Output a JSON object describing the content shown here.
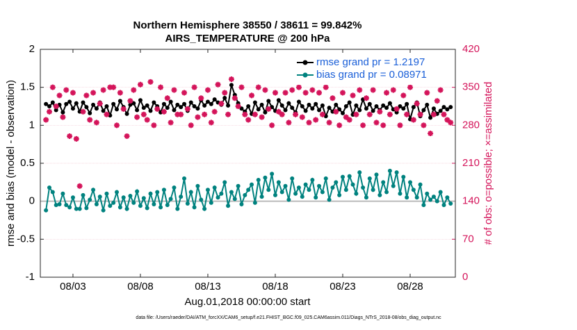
{
  "chart_data": {
    "type": "line",
    "title": "Northern Hemisphere 38550 / 38611 = 99.842%",
    "subtitle": "AIRS_TEMPERATURE @ 200 hPa",
    "xlabel": "Aug.01,2018 00:00:00 start",
    "ylabel": "rmse and bias (model - observation)",
    "y2label": "# of obs: o=possible; ×=assimilated",
    "footnote": "data file: /Users/raeder/DAI/ATM_forcXX/CAM6_setup/f.e21.FHIST_BGC.f09_025.CAM6assim.011/Diags_NTrS_2018-08/obs_diag_output.nc",
    "xlim": [
      -0.42,
      30.35
    ],
    "xticks": [
      {
        "value": 2,
        "label": "08/03"
      },
      {
        "value": 7,
        "label": "08/08"
      },
      {
        "value": 12,
        "label": "08/13"
      },
      {
        "value": 17,
        "label": "08/18"
      },
      {
        "value": 22,
        "label": "08/23"
      },
      {
        "value": 27,
        "label": "08/28"
      }
    ],
    "ylim": [
      -1,
      2
    ],
    "yticks": [
      -1,
      -0.5,
      0,
      0.5,
      1,
      1.5,
      2
    ],
    "y2lim": [
      0,
      420
    ],
    "y2ticks": [
      0,
      70,
      140,
      210,
      280,
      350,
      420
    ],
    "hline": 0,
    "grid": true,
    "legend": "upper right",
    "legend_text_color": "#1a5fd8",
    "y2_color": "#d4145a",
    "x": [
      0,
      0.25,
      0.5,
      0.75,
      1,
      1.25,
      1.5,
      1.75,
      2,
      2.25,
      2.5,
      2.75,
      3,
      3.25,
      3.5,
      3.75,
      4,
      4.25,
      4.5,
      4.75,
      5,
      5.25,
      5.5,
      5.75,
      6,
      6.25,
      6.5,
      6.75,
      7,
      7.25,
      7.5,
      7.75,
      8,
      8.25,
      8.5,
      8.75,
      9,
      9.25,
      9.5,
      9.75,
      10,
      10.25,
      10.5,
      10.75,
      11,
      11.25,
      11.5,
      11.75,
      12,
      12.25,
      12.5,
      12.75,
      13,
      13.25,
      13.5,
      13.75,
      14,
      14.25,
      14.5,
      14.75,
      15,
      15.25,
      15.5,
      15.75,
      16,
      16.25,
      16.5,
      16.75,
      17,
      17.25,
      17.5,
      17.75,
      18,
      18.25,
      18.5,
      18.75,
      19,
      19.25,
      19.5,
      19.75,
      20,
      20.25,
      20.5,
      20.75,
      21,
      21.25,
      21.5,
      21.75,
      22,
      22.25,
      22.5,
      22.75,
      23,
      23.25,
      23.5,
      23.75,
      24,
      24.25,
      24.5,
      24.75,
      25,
      25.25,
      25.5,
      25.75,
      26,
      26.25,
      26.5,
      26.75,
      27,
      27.25,
      27.5,
      27.75,
      28,
      28.25,
      28.5,
      28.75,
      29,
      29.25,
      29.5,
      29.75,
      30
    ],
    "series": [
      {
        "name": "rmse grand pr = 1.2197",
        "color": "#000000",
        "marker": "circle",
        "values": [
          1.28,
          1.25,
          1.3,
          1.2,
          1.27,
          1.17,
          1.28,
          1.31,
          1.22,
          1.29,
          1.18,
          1.3,
          1.24,
          1.16,
          1.27,
          1.22,
          1.3,
          1.19,
          1.25,
          1.13,
          1.28,
          1.21,
          1.32,
          1.24,
          1.15,
          1.27,
          1.29,
          1.2,
          1.33,
          1.23,
          1.26,
          1.19,
          1.3,
          1.25,
          1.17,
          1.28,
          1.23,
          1.31,
          1.2,
          1.27,
          1.24,
          1.28,
          1.19,
          1.3,
          1.25,
          1.22,
          1.33,
          1.26,
          1.31,
          1.28,
          1.34,
          1.3,
          1.27,
          1.36,
          1.26,
          1.53,
          1.4,
          1.29,
          1.22,
          1.18,
          1.25,
          1.15,
          1.3,
          1.21,
          1.27,
          1.17,
          1.32,
          1.24,
          1.19,
          1.33,
          1.26,
          1.2,
          1.29,
          1.23,
          1.17,
          1.31,
          1.25,
          1.19,
          1.27,
          1.22,
          1.28,
          1.2,
          1.26,
          1.12,
          1.23,
          1.18,
          1.27,
          1.21,
          1.16,
          1.25,
          1.3,
          1.14,
          1.26,
          1.2,
          1.34,
          1.22,
          1.28,
          1.19,
          1.25,
          1.2,
          1.26,
          1.23,
          1.29,
          1.21,
          1.17,
          1.25,
          1.22,
          1.28,
          1.08,
          1.24,
          1.3,
          1.12,
          1.2,
          1.27,
          1.1,
          1.22,
          1.15,
          1.19,
          1.24,
          1.21,
          1.24
        ]
      },
      {
        "name": "bias grand pr = 0.08971",
        "color": "#00827f",
        "marker": "circle",
        "values": [
          -0.12,
          0.18,
          0.12,
          -0.05,
          -0.04,
          0.1,
          -0.05,
          -0.08,
          0.05,
          -0.1,
          -0.1,
          0.08,
          -0.09,
          0.02,
          0.15,
          -0.04,
          0.06,
          -0.12,
          0.1,
          -0.06,
          -0.02,
          0.12,
          -0.08,
          0.05,
          -0.1,
          0.07,
          -0.02,
          0.13,
          -0.06,
          0.04,
          -0.09,
          0.1,
          -0.04,
          0.12,
          -0.08,
          0.15,
          -0.05,
          0.03,
          0.18,
          -0.1,
          0.06,
          0.3,
          -0.03,
          0.12,
          -0.08,
          0.2,
          0.02,
          -0.1,
          0.15,
          -0.02,
          0.18,
          0.05,
          0.1,
          0.25,
          -0.06,
          0.12,
          0.03,
          0.2,
          -0.04,
          0.08,
          0.15,
          0.22,
          -0.02,
          0.28,
          0.06,
          0.31,
          0.15,
          0.36,
          0.08,
          0.25,
          0.12,
          0.2,
          0.02,
          0.3,
          0.1,
          0.18,
          0.06,
          0.22,
          0.15,
          0.28,
          0.05,
          0.2,
          0.12,
          0.3,
          0.02,
          0.18,
          0.25,
          0.08,
          0.32,
          0.15,
          0.33,
          0.22,
          0.1,
          0.38,
          0.18,
          0.05,
          0.3,
          0.15,
          0.35,
          0.08,
          0.25,
          0.12,
          0.4,
          0.2,
          0.38,
          0.1,
          0.32,
          0.05,
          0.25,
          0.15,
          0.05,
          0.22,
          -0.05,
          0.1,
          0.02,
          0.06,
          0.0,
          0.12,
          -0.05,
          0.05,
          -0.03
        ]
      },
      {
        "color": "#d4145a",
        "marker": "star",
        "axis": "y2",
        "line": false,
        "values": [
          290,
          305,
          350,
          315,
          335,
          295,
          345,
          260,
          340,
          255,
          168,
          305,
          335,
          290,
          340,
          285,
          320,
          345,
          300,
          350,
          350,
          280,
          340,
          310,
          260,
          325,
          345,
          295,
          355,
          300,
          290,
          360,
          280,
          310,
          350,
          305,
          330,
          285,
          345,
          300,
          300,
          340,
          310,
          280,
          350,
          295,
          330,
          300,
          345,
          285,
          305,
          355,
          320,
          340,
          300,
          365,
          330,
          315,
          350,
          300,
          290,
          335,
          300,
          350,
          295,
          345,
          310,
          280,
          340,
          305,
          300,
          340,
          285,
          345,
          300,
          350,
          295,
          340,
          285,
          345,
          290,
          340,
          300,
          350,
          285,
          330,
          305,
          280,
          340,
          295,
          290,
          335,
          300,
          345,
          280,
          330,
          300,
          345,
          285,
          305,
          280,
          340,
          300,
          345,
          310,
          280,
          335,
          300,
          350,
          290,
          320,
          300,
          280,
          340,
          265,
          300,
          325,
          345,
          300,
          290,
          285
        ]
      }
    ]
  }
}
